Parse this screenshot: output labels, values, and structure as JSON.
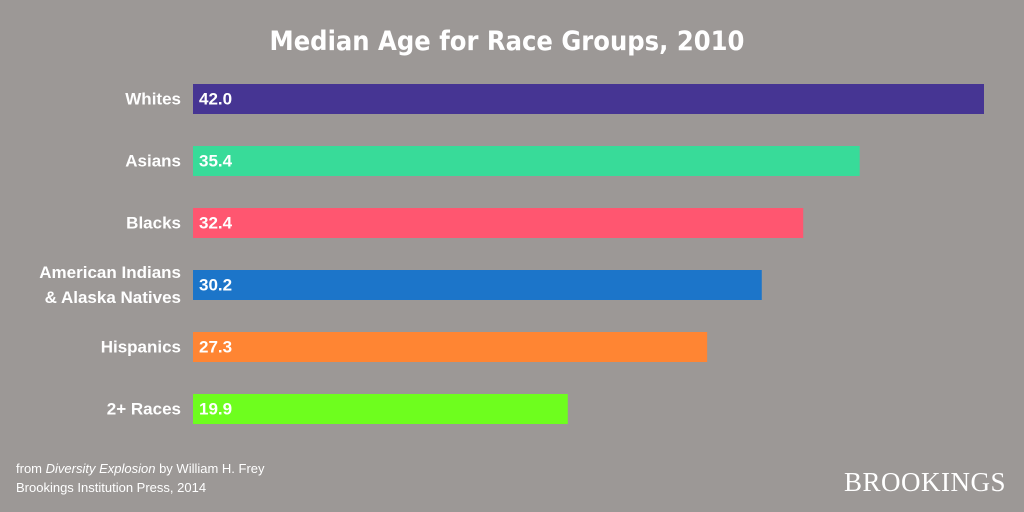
{
  "chart_data": {
    "type": "bar",
    "orientation": "horizontal",
    "title": "Median Age for Race Groups, 2010",
    "categories": [
      "Whites",
      "Asians",
      "Blacks",
      "American Indians\n& Alaska Natives",
      "Hispanics",
      "2+ Races"
    ],
    "values": [
      42.0,
      35.4,
      32.4,
      30.2,
      27.3,
      19.9
    ],
    "value_labels": [
      "42.0",
      "35.4",
      "32.4",
      "30.2",
      "27.3",
      "19.9"
    ],
    "colors": [
      "#463593",
      "#38db99",
      "#ff5670",
      "#1c75c9",
      "#ff8533",
      "#6efe1e"
    ]
  },
  "source": {
    "prefix": "from",
    "book": "Diversity Explosion",
    "suffix": "by William H. Frey",
    "publisher": "Brookings Institution Press, 2014"
  },
  "logo": "BROOKINGS"
}
